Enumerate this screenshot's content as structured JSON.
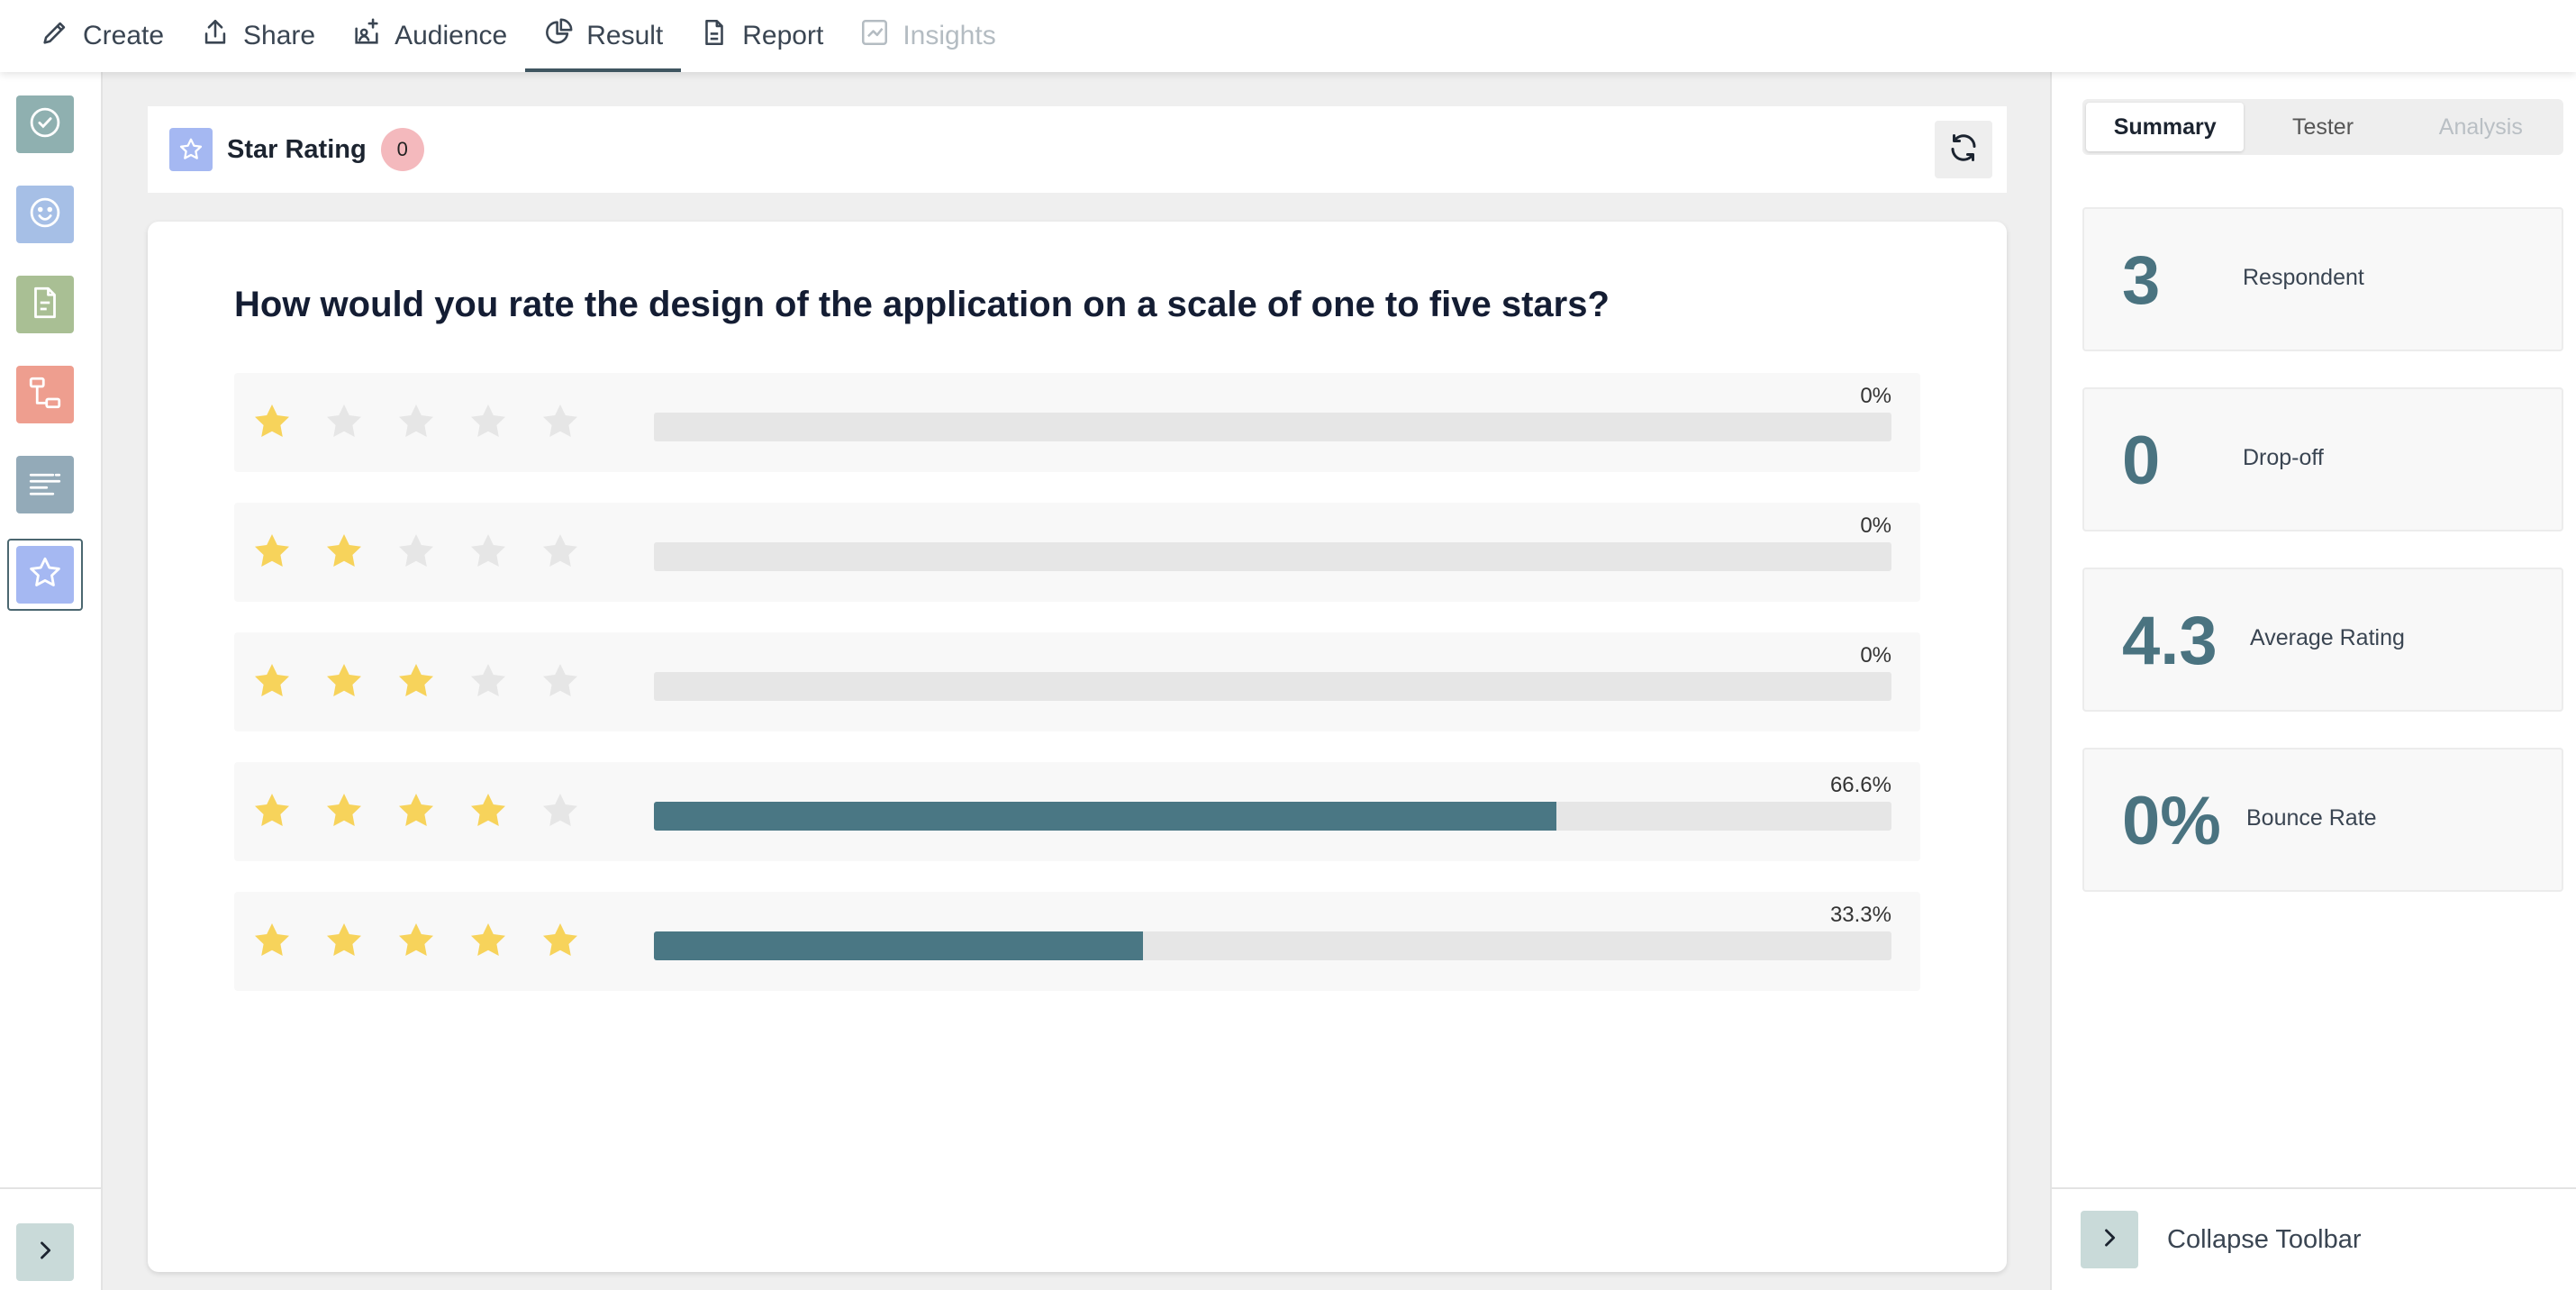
{
  "nav": {
    "tabs": [
      {
        "label": "Create",
        "icon": "pencil-icon"
      },
      {
        "label": "Share",
        "icon": "share-icon"
      },
      {
        "label": "Audience",
        "icon": "audience-icon"
      },
      {
        "label": "Result",
        "icon": "pie-chart-icon",
        "active": true
      },
      {
        "label": "Report",
        "icon": "document-icon"
      },
      {
        "label": "Insights",
        "icon": "trend-icon",
        "disabled": true
      }
    ]
  },
  "sidebar": {
    "items": [
      {
        "icon": "check-circle-icon",
        "color": "#8fb0b0"
      },
      {
        "icon": "smiley-icon",
        "color": "#a6bfe6"
      },
      {
        "icon": "document-icon",
        "color": "#a9bf94"
      },
      {
        "icon": "flow-icon",
        "color": "#ee9e8f"
      },
      {
        "icon": "text-lines-icon",
        "color": "#93aab8"
      },
      {
        "icon": "star-icon",
        "color": "#a5b8f2",
        "selected": true
      }
    ]
  },
  "question_header": {
    "type_label": "Star Rating",
    "badge": "0"
  },
  "question": {
    "text": "How would you rate the design of the application on a scale of one to five stars?",
    "rows": [
      {
        "stars": 1,
        "percent_label": "0%",
        "fraction": 0
      },
      {
        "stars": 2,
        "percent_label": "0%",
        "fraction": 0
      },
      {
        "stars": 3,
        "percent_label": "0%",
        "fraction": 0
      },
      {
        "stars": 4,
        "percent_label": "66.6%",
        "fraction": 0.729
      },
      {
        "stars": 5,
        "percent_label": "33.3%",
        "fraction": 0.395
      }
    ]
  },
  "right_panel": {
    "tabs": [
      {
        "label": "Summary",
        "active": true
      },
      {
        "label": "Tester"
      },
      {
        "label": "Analysis",
        "disabled": true
      }
    ],
    "stats": [
      {
        "value": "3",
        "label": "Respondent"
      },
      {
        "value": "0",
        "label": "Drop-off"
      },
      {
        "value": "4.3",
        "label": "Average Rating"
      },
      {
        "value": "0%",
        "label": "Bounce Rate"
      }
    ],
    "collapse_label": "Collapse Toolbar"
  },
  "colors": {
    "star_filled": "#f7d35b",
    "star_empty": "#e6e6e6",
    "bar_fill": "#4a7784",
    "accent": "#4a7380"
  }
}
